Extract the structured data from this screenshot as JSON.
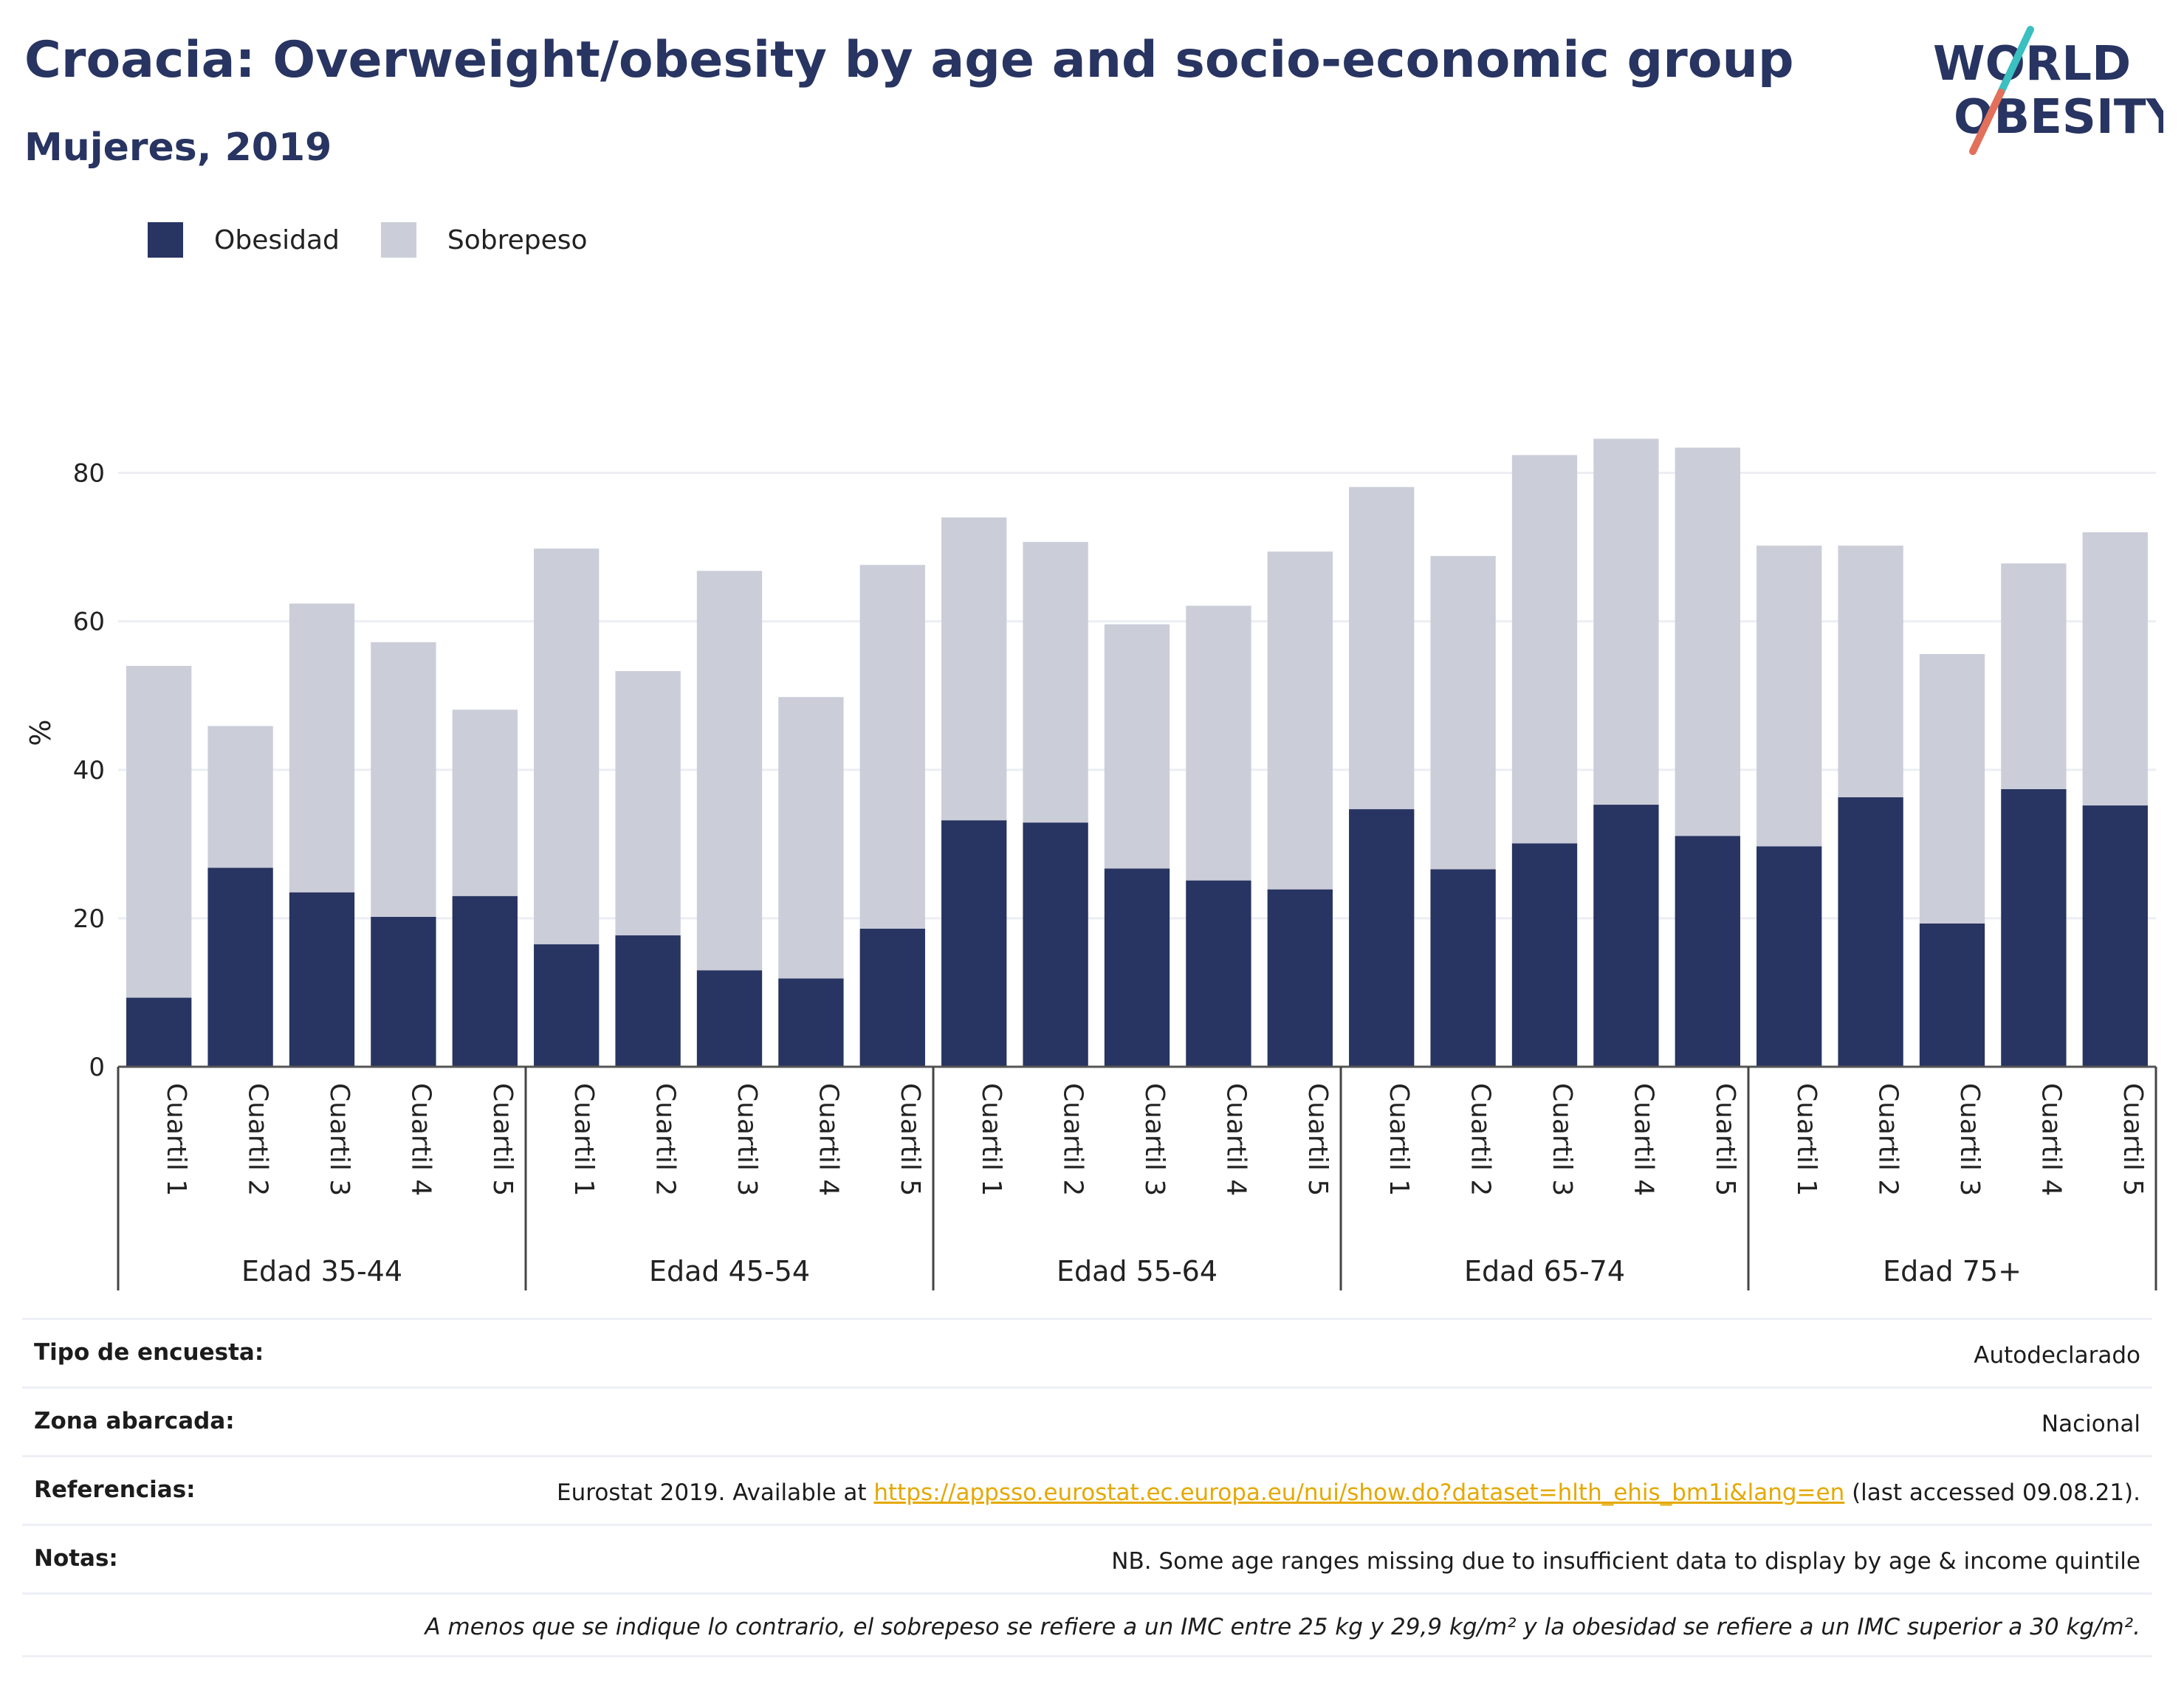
{
  "header": {
    "title": "Croacia: Overweight/obesity by age and socio-economic group",
    "subtitle": "Mujeres, 2019"
  },
  "logo": {
    "line1": "WORLD",
    "line2": "OBESITY",
    "colors": {
      "text": "#283461",
      "slash_top": "#3bbfc0",
      "slash_bottom": "#e2705a"
    }
  },
  "legend": {
    "obesity": "Obesidad",
    "overweight": "Sobrepeso"
  },
  "colors": {
    "obesity": "#283461",
    "overweight": "#cbcdd9",
    "grid": "#eceef4",
    "axis": "#555555"
  },
  "chart_data": {
    "type": "bar",
    "stacked": true,
    "ylabel": "%",
    "ylim": [
      0,
      90
    ],
    "yticks": [
      0,
      20,
      40,
      60,
      80
    ],
    "grid": true,
    "legend_position": "top-left",
    "groups": [
      "Edad 35-44",
      "Edad 45-54",
      "Edad 55-64",
      "Edad 65-74",
      "Edad 75+"
    ],
    "categories": [
      "Cuartil 1",
      "Cuartil 2",
      "Cuartil 3",
      "Cuartil 4",
      "Cuartil 5"
    ],
    "series": [
      {
        "name": "Obesidad",
        "values": [
          [
            9.3,
            26.8,
            23.5,
            20.2,
            23.0
          ],
          [
            16.5,
            17.7,
            13.0,
            11.9,
            18.6
          ],
          [
            33.2,
            32.9,
            26.7,
            25.1,
            23.9
          ],
          [
            34.7,
            26.6,
            30.1,
            35.3,
            31.1
          ],
          [
            29.7,
            36.3,
            19.3,
            37.4,
            35.2
          ]
        ]
      },
      {
        "name": "Sobrepeso",
        "values": [
          [
            44.7,
            19.1,
            38.9,
            37.0,
            25.1
          ],
          [
            53.3,
            35.6,
            53.8,
            37.9,
            49.0
          ],
          [
            40.8,
            37.8,
            32.9,
            37.0,
            45.5
          ],
          [
            43.4,
            42.2,
            52.3,
            49.3,
            52.3
          ],
          [
            40.5,
            33.9,
            36.3,
            30.4,
            36.8
          ]
        ]
      }
    ]
  },
  "meta": {
    "survey_label": "Tipo de encuesta:",
    "survey_value": "Autodeclarado",
    "area_label": "Zona abarcada:",
    "area_value": "Nacional",
    "refs_label": "Referencias:",
    "refs_prefix": "Eurostat 2019. Available at ",
    "refs_link": "https://appsso.eurostat.ec.europa.eu/nui/show.do?dataset=hlth_ehis_bm1i&lang=en",
    "refs_suffix": " (last accessed 09.08.21).",
    "notes_label": "Notas:",
    "notes_value": "NB. Some age ranges missing due to insufficient data to display by age & income quintile",
    "footnote": "A menos que se indique lo contrario, el sobrepeso se refiere a un IMC entre 25 kg y 29,9 kg/m² y la obesidad se refiere a un IMC superior a 30 kg/m²."
  }
}
